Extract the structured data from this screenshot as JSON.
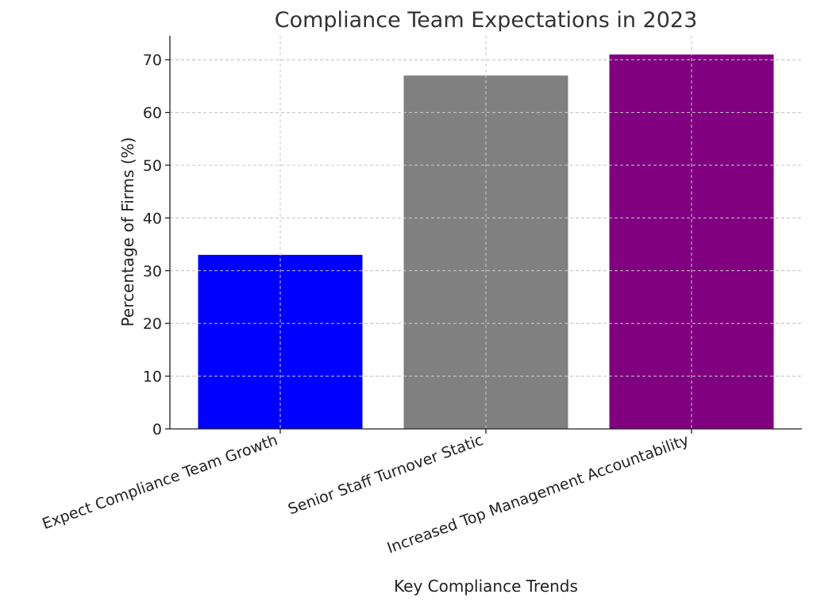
{
  "chart_data": {
    "type": "bar",
    "title": "Compliance Team Expectations in 2023",
    "xlabel": "Key Compliance Trends",
    "ylabel": "Percentage of Firms (%)",
    "categories": [
      "Expect Compliance Team Growth",
      "Senior Staff Turnover Static",
      "Increased Top Management Accountability"
    ],
    "values": [
      33,
      67,
      71
    ],
    "colors": [
      "#0000ff",
      "#808080",
      "#800080"
    ],
    "ylim": [
      0,
      74.55
    ],
    "yticks": [
      0,
      10,
      20,
      30,
      40,
      50,
      60,
      70
    ],
    "grid": true,
    "legend": null
  }
}
